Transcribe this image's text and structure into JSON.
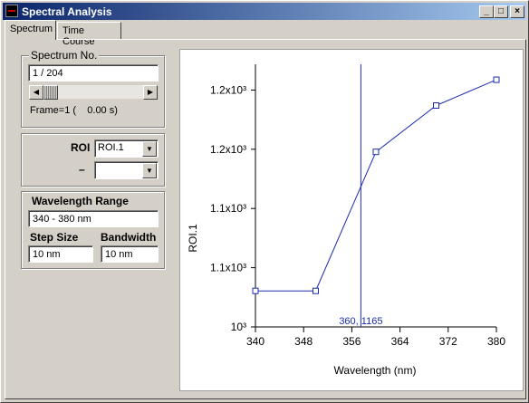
{
  "window": {
    "title": "Spectral Analysis",
    "minimize": "_",
    "maximize": "□",
    "close": "×"
  },
  "tabs": [
    {
      "label": "Spectrum"
    },
    {
      "label": "Time Course"
    }
  ],
  "spectrum_no": {
    "legend": "Spectrum No.",
    "value": "1 / 204",
    "frame_label": "Frame=1 (    0.00 s)",
    "scroll_fraction": 0
  },
  "roi": {
    "label": "ROI",
    "selected": "ROI.1",
    "minus_label": "–",
    "second_selected": ""
  },
  "wavelength": {
    "legend": "Wavelength Range",
    "range_value": "340 - 380 nm",
    "step_label": "Step Size",
    "step_value": "10 nm",
    "bandwidth_label": "Bandwidth",
    "bandwidth_value": "10 nm"
  },
  "chart_data": {
    "type": "line",
    "xlabel": "Wavelength (nm)",
    "ylabel": "ROI.1",
    "x_ticks": [
      "340",
      "348",
      "356",
      "364",
      "372",
      "380"
    ],
    "y_ticks": [
      "10³",
      "1.1x10³",
      "1.1x10³",
      "1.2x10³",
      "1.2x10³"
    ],
    "xlim": [
      340,
      380
    ],
    "ylim": [
      1138,
      1189
    ],
    "x": [
      340,
      350,
      360,
      370,
      380
    ],
    "y": [
      1145,
      1145,
      1172,
      1181,
      1186
    ],
    "cursor": {
      "x": 357.5,
      "label": "360, 1165"
    },
    "grid": false
  }
}
